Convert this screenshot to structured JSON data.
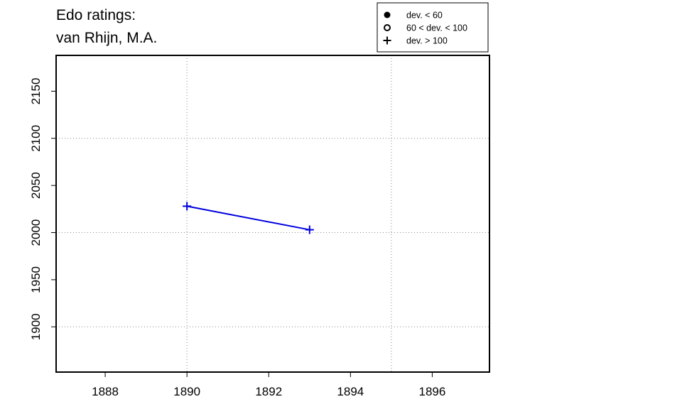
{
  "chart_data": {
    "type": "line",
    "title_lines": [
      "Edo ratings:",
      "van Rhijn, M.A."
    ],
    "xlabel": "",
    "ylabel": "",
    "xlim": [
      1886.8,
      1897.4
    ],
    "ylim": [
      1852,
      2188
    ],
    "x_ticks": [
      1888,
      1890,
      1892,
      1894,
      1896
    ],
    "y_ticks": [
      1900,
      1950,
      2000,
      2050,
      2100,
      2150
    ],
    "x_grid": [
      1890,
      1895
    ],
    "y_grid": [
      1900,
      2000,
      2100
    ],
    "grid": true,
    "legend": {
      "placement": "top-right",
      "entries": [
        {
          "label": "dev. < 60",
          "marker": "filled-circle"
        },
        {
          "label": "60 < dev. < 100",
          "marker": "open-circle"
        },
        {
          "label": "dev. > 100",
          "marker": "plus"
        }
      ]
    },
    "series": [
      {
        "color": "#0000dd",
        "marker": "plus",
        "points": [
          {
            "x": 1890,
            "y": 2028
          },
          {
            "x": 1893,
            "y": 2003
          }
        ]
      }
    ]
  }
}
